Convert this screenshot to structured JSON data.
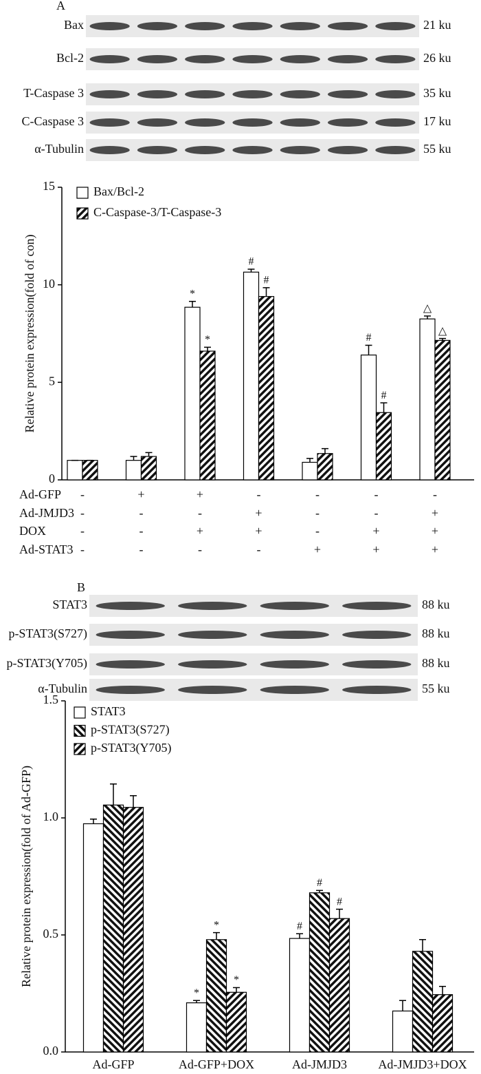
{
  "blots": [
    {
      "panel": "A",
      "rows": [
        {
          "label": "Bax",
          "size": "21 ku"
        },
        {
          "label": "Bcl-2",
          "size": "26 ku"
        },
        {
          "label": "T-Caspase 3",
          "size": "35 ku"
        },
        {
          "label": "C-Caspase 3",
          "size": "17 ku"
        },
        {
          "label": "α-Tubulin",
          "size": "55 ku"
        }
      ]
    },
    {
      "panel": "B",
      "rows": [
        {
          "label": "STAT3",
          "size": "88 ku"
        },
        {
          "label": "p-STAT3(S727)",
          "size": "88 ku"
        },
        {
          "label": "p-STAT3(Y705)",
          "size": "88 ku"
        },
        {
          "label": "α-Tubulin",
          "size": "55 ku"
        }
      ]
    }
  ],
  "chart_data": [
    {
      "type": "bar",
      "ylabel": "Relative protein expression(fold of con)",
      "categories": [
        null,
        null,
        null,
        null,
        null,
        null,
        null
      ],
      "ylim": [
        0,
        15
      ],
      "yticks": [
        0,
        5,
        10,
        15
      ],
      "legend": "top-left",
      "series": [
        {
          "name": "Bax/Bcl-2",
          "color": "#ffffff",
          "hatch": null,
          "values": [
            1.0,
            1.0,
            8.85,
            10.65,
            0.9,
            6.4,
            8.25
          ],
          "errors": [
            0,
            0.2,
            0.3,
            0.15,
            0.2,
            0.5,
            0.15
          ],
          "markers": [
            null,
            null,
            "*",
            "#",
            null,
            "#",
            "△"
          ]
        },
        {
          "name": "C-Caspase-3/T-Caspase-3",
          "color": "#ffffff",
          "hatch": "forward",
          "values": [
            1.0,
            1.2,
            6.6,
            9.4,
            1.35,
            3.45,
            7.15
          ],
          "errors": [
            0,
            0.2,
            0.2,
            0.45,
            0.25,
            0.5,
            0.1
          ],
          "markers": [
            null,
            null,
            "*",
            "#",
            null,
            "#",
            "△"
          ]
        }
      ],
      "conditions": [
        {
          "name": "Ad-GFP",
          "marks": [
            "-",
            "+",
            "+",
            "-",
            "-",
            "-",
            "-"
          ]
        },
        {
          "name": "Ad-JMJD3",
          "marks": [
            "-",
            "-",
            "-",
            "+",
            "-",
            "-",
            "+"
          ]
        },
        {
          "name": "DOX",
          "marks": [
            "-",
            "-",
            "+",
            "+",
            "-",
            "+",
            "+"
          ]
        },
        {
          "name": "Ad-STAT3",
          "marks": [
            "-",
            "-",
            "-",
            "-",
            "+",
            "+",
            "+"
          ]
        }
      ]
    },
    {
      "type": "bar",
      "ylabel": "Relative protein expression(fold of Ad-GFP)",
      "categories": [
        "Ad-GFP",
        "Ad-GFP+DOX",
        "Ad-JMJD3",
        "Ad-JMJD3+DOX"
      ],
      "ylim": [
        0,
        1.5
      ],
      "yticks": [
        {
          "value": 0,
          "label": "0.0"
        },
        {
          "value": 0.5,
          "label": "0.5"
        },
        {
          "value": 1,
          "label": "1.0"
        },
        {
          "value": 1.5,
          "label": "1.5"
        }
      ],
      "legend": "top-left",
      "series": [
        {
          "name": "STAT3",
          "color": "#ffffff",
          "hatch": null,
          "values": [
            0.975,
            0.21,
            0.485,
            0.175
          ],
          "errors": [
            0.02,
            0.01,
            0.02,
            0.045
          ],
          "markers": [
            null,
            "*",
            "#",
            null
          ]
        },
        {
          "name": "p-STAT3(S727)",
          "color": "#ffffff",
          "hatch": "backward",
          "values": [
            1.055,
            0.48,
            0.68,
            0.43
          ],
          "errors": [
            0.09,
            0.03,
            0.01,
            0.05
          ],
          "markers": [
            null,
            "*",
            "#",
            null
          ]
        },
        {
          "name": "p-STAT3(Y705)",
          "color": "#ffffff",
          "hatch": "forward",
          "values": [
            1.045,
            0.255,
            0.57,
            0.245
          ],
          "errors": [
            0.05,
            0.02,
            0.04,
            0.035
          ],
          "markers": [
            null,
            "*",
            "#",
            null
          ]
        }
      ]
    }
  ]
}
